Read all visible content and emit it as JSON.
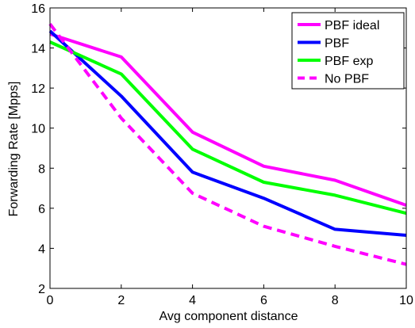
{
  "chart_data": {
    "type": "line",
    "title": "",
    "xlabel": "Avg component distance",
    "ylabel": "Forwarding Rate [Mpps]",
    "xlim": [
      0,
      10
    ],
    "ylim": [
      2,
      16
    ],
    "xticks": [
      0,
      2,
      4,
      6,
      8,
      10
    ],
    "yticks": [
      2,
      4,
      6,
      8,
      10,
      12,
      14,
      16
    ],
    "grid": false,
    "legend_position": "top-right",
    "x": [
      0,
      2,
      4,
      6,
      8,
      10
    ],
    "series": [
      {
        "name": "PBF ideal",
        "color": "#ff00ff",
        "dash": "solid",
        "values": [
          14.7,
          13.55,
          9.8,
          8.1,
          7.4,
          6.15
        ]
      },
      {
        "name": "PBF",
        "color": "#0000ff",
        "dash": "solid",
        "values": [
          14.85,
          11.6,
          7.8,
          6.5,
          4.95,
          4.65
        ]
      },
      {
        "name": "PBF exp",
        "color": "#00ff00",
        "dash": "solid",
        "values": [
          14.3,
          12.7,
          8.95,
          7.3,
          6.65,
          5.75
        ]
      },
      {
        "name": "No PBF",
        "color": "#ff00ff",
        "dash": "dashed",
        "values": [
          15.2,
          10.5,
          6.75,
          5.1,
          4.1,
          3.2
        ]
      }
    ]
  }
}
